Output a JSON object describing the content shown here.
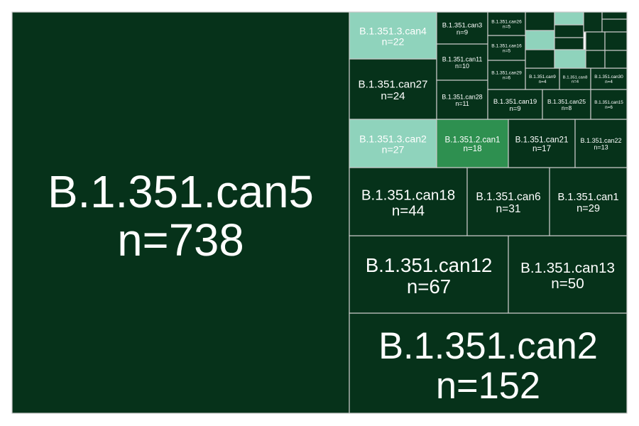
{
  "chart_data": {
    "type": "treemap",
    "colors": {
      "dark": "#06321a",
      "mid": "#2e9050",
      "light": "#8fd3bc",
      "border": "#c9c9c9",
      "text": "#ffffff"
    },
    "nodes": [
      {
        "name": "B.1.351.can5",
        "label": "B.1.351.can5",
        "value": 738,
        "shade": "dark"
      },
      {
        "name": "B.1.351.can2",
        "label": "B.1.351.can2",
        "value": 152,
        "shade": "dark"
      },
      {
        "name": "B.1.351.can12",
        "label": "B.1.351.can12",
        "value": 67,
        "shade": "dark"
      },
      {
        "name": "B.1.351.can13",
        "label": "B.1.351.can13",
        "value": 50,
        "shade": "dark"
      },
      {
        "name": "B.1.351.can18",
        "label": "B.1.351.can18",
        "value": 44,
        "shade": "dark"
      },
      {
        "name": "B.1.351.can6",
        "label": "B.1.351.can6",
        "value": 31,
        "shade": "dark"
      },
      {
        "name": "B.1.351.can1",
        "label": "B.1.351.can1",
        "value": 29,
        "shade": "dark"
      },
      {
        "name": "B.1.351.3.can2",
        "label": "B.1.351.3.can2",
        "value": 27,
        "shade": "light"
      },
      {
        "name": "B.1.351.2.can1",
        "label": "B.1.351.2.can1",
        "value": 18,
        "shade": "mid"
      },
      {
        "name": "B.1.351.can21",
        "label": "B.1.351.can21",
        "value": 17,
        "shade": "dark"
      },
      {
        "name": "B.1.351.can22",
        "label": "B.1.351.can22",
        "value": 13,
        "shade": "dark"
      },
      {
        "name": "B.1.351.can27",
        "label": "B.1.351.can27",
        "value": 24,
        "shade": "dark"
      },
      {
        "name": "B.1.351.3.can4",
        "label": "B.1.351.3.can4",
        "value": 22,
        "shade": "light"
      },
      {
        "name": "B.1.351.can3",
        "label": "B.1.351.can3",
        "value": 9,
        "shade": "dark"
      },
      {
        "name": "B.1.351.can11",
        "label": "B.1.351.can11",
        "value": 10,
        "shade": "dark"
      },
      {
        "name": "B.1.351.can28",
        "label": "B.1.351.can28",
        "value": 11,
        "shade": "dark"
      },
      {
        "name": "B.1.351.can19",
        "label": "B.1.351.can19",
        "value": 9,
        "shade": "dark"
      },
      {
        "name": "B.1.351.can25",
        "label": "B.1.351.can25",
        "value": 8,
        "shade": "dark"
      },
      {
        "name": "B.1.351.can15",
        "label": "B.1.351.can15",
        "value": 6,
        "shade": "dark"
      },
      {
        "name": "B.1.351.can26",
        "label": "B.1.351.can26",
        "value": 5,
        "shade": "dark"
      },
      {
        "name": "B.1.351.can16",
        "label": "B.1.351.can16",
        "value": 5,
        "shade": "dark"
      },
      {
        "name": "B.1.351.can29",
        "label": "B.1.351.can29",
        "value": 6,
        "shade": "dark"
      },
      {
        "name": "B.1.351.can9",
        "label": "B.1.351.can9",
        "value": 4,
        "shade": "dark"
      },
      {
        "name": "B.1.351.can8",
        "label": "B.1.351.can8",
        "value": 4,
        "shade": "dark"
      },
      {
        "name": "B.1.351.can30",
        "label": "B.1.351.can30",
        "value": 4,
        "shade": "dark"
      },
      {
        "name": "small-1",
        "value": 4,
        "shade": "dark"
      },
      {
        "name": "small-2",
        "value": 3,
        "shade": "light"
      },
      {
        "name": "small-3",
        "value": 3,
        "shade": "dark"
      },
      {
        "name": "small-4",
        "value": 2,
        "shade": "dark"
      },
      {
        "name": "small-5",
        "value": 2,
        "shade": "dark"
      },
      {
        "name": "small-6",
        "value": 2,
        "shade": "dark"
      },
      {
        "name": "small-7",
        "value": 3,
        "shade": "light"
      },
      {
        "name": "small-8",
        "value": 2,
        "shade": "dark"
      },
      {
        "name": "small-9",
        "value": 2,
        "shade": "dark"
      },
      {
        "name": "small-10",
        "value": 3,
        "shade": "light"
      },
      {
        "name": "small-11",
        "value": 2,
        "shade": "dark"
      },
      {
        "name": "small-12",
        "value": 1,
        "shade": "dark"
      },
      {
        "name": "small-13",
        "value": 1,
        "shade": "dark"
      },
      {
        "name": "small-14",
        "value": 1,
        "shade": "dark"
      },
      {
        "name": "small-15",
        "value": 1,
        "shade": "dark"
      }
    ]
  }
}
